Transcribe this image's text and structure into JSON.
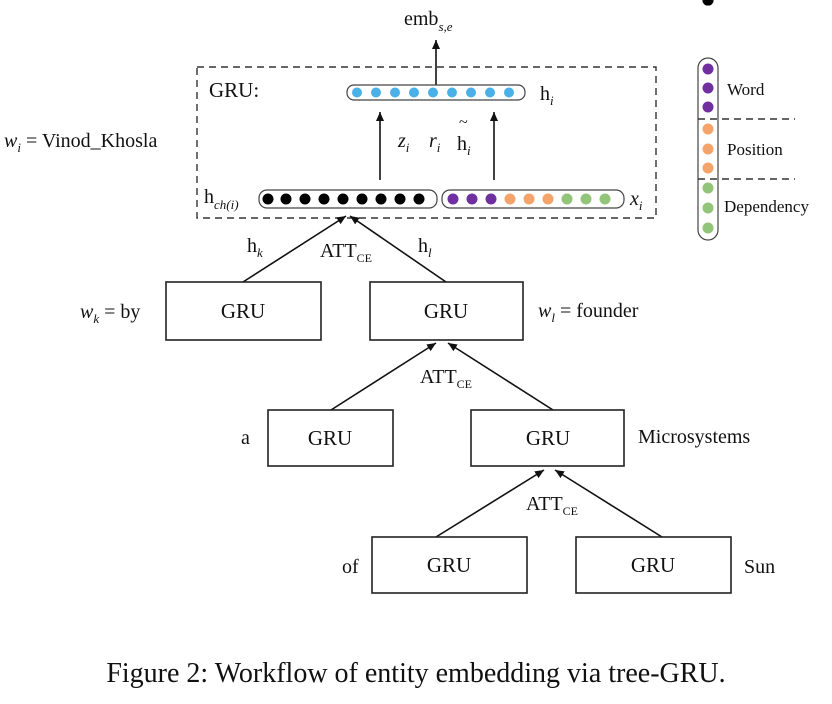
{
  "caption": "Figure 2: Workflow of entity embedding via tree-GRU.",
  "output_label": {
    "main": "emb",
    "sub": "s,e"
  },
  "gru_block": {
    "title": "GRU:"
  },
  "hidden_label": {
    "main": "h",
    "sub": "i"
  },
  "current_word": {
    "var": "w",
    "sub": "i",
    "rest": " = Vinod_Khosla"
  },
  "gates": [
    {
      "main": "z",
      "sub": "i"
    },
    {
      "main": "r",
      "sub": "i"
    },
    {
      "main": "h",
      "sub": "i",
      "tilde": "~"
    }
  ],
  "child_hidden_label": {
    "main": "h",
    "sub": "ch(i)"
  },
  "input_label": {
    "main": "x",
    "sub": "i"
  },
  "legend": [
    {
      "label": "Word",
      "color": "#7030a0"
    },
    {
      "label": "Position",
      "color": "#f4a46b"
    },
    {
      "label": "Dependency",
      "color": "#92c47a"
    }
  ],
  "attention": {
    "main": "ATT",
    "sub": "CE"
  },
  "child_edge_labels": [
    {
      "main": "h",
      "sub": "k"
    },
    {
      "main": "h",
      "sub": "l"
    }
  ],
  "gru_label": "GRU",
  "nodes": [
    {
      "word": "by",
      "word_display": {
        "var": "w",
        "sub": "k",
        "rest": " = by"
      }
    },
    {
      "word": "founder",
      "word_display": {
        "var": "w",
        "sub": "l",
        "rest": " = founder"
      }
    },
    {
      "word": "a"
    },
    {
      "word": "Microsystems"
    },
    {
      "word": "of"
    },
    {
      "word": "Sun"
    }
  ],
  "colors": {
    "hidden_dot": "#4ab0e8",
    "child_dot": "#000000",
    "word_dot": "#7030a0",
    "position_dot": "#f4a46b",
    "dependency_dot": "#92c47a"
  }
}
